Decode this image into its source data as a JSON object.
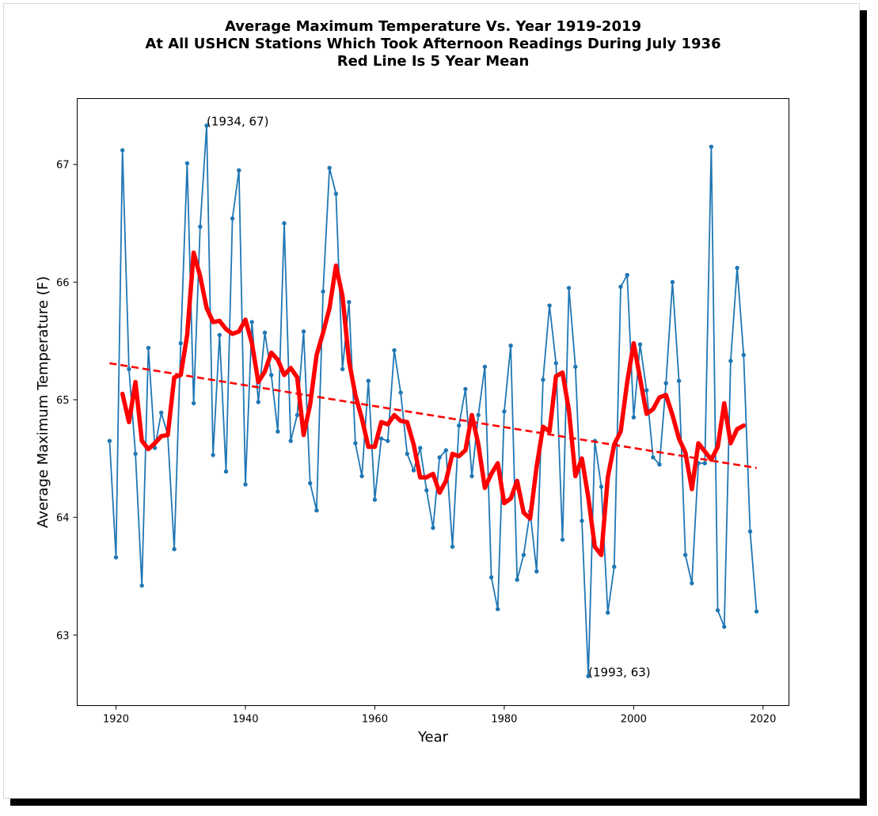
{
  "chart_data": {
    "type": "line",
    "title_lines": [
      "Average Maximum Temperature Vs. Year 1919-2019",
      "At All USHCN Stations Which Took Afternoon Readings During July 1936",
      "Red Line Is 5 Year Mean"
    ],
    "xlabel": "Year",
    "ylabel": "Average Maximum Temperature (F)",
    "xlim": [
      1914,
      2024
    ],
    "ylim": [
      62.4,
      67.56
    ],
    "xticks": [
      1920,
      1940,
      1960,
      1980,
      2000,
      2020
    ],
    "yticks": [
      63,
      64,
      65,
      66,
      67
    ],
    "grid": false,
    "annotations": [
      {
        "text": "(1934, 67)",
        "x": 1934,
        "y": 67.33
      },
      {
        "text": "(1993, 63)",
        "x": 1993,
        "y": 62.65
      }
    ],
    "colors": {
      "annual": "#1f77b4",
      "mean": "#ff0000",
      "trend": "#ff0000"
    },
    "annual_series": {
      "x": [
        1919,
        1920,
        1921,
        1922,
        1923,
        1924,
        1925,
        1926,
        1927,
        1928,
        1929,
        1930,
        1931,
        1932,
        1933,
        1934,
        1935,
        1936,
        1937,
        1938,
        1939,
        1940,
        1941,
        1942,
        1943,
        1944,
        1945,
        1946,
        1947,
        1948,
        1949,
        1950,
        1951,
        1952,
        1953,
        1954,
        1955,
        1956,
        1957,
        1958,
        1959,
        1960,
        1961,
        1962,
        1963,
        1964,
        1965,
        1966,
        1967,
        1968,
        1969,
        1970,
        1971,
        1972,
        1973,
        1974,
        1975,
        1976,
        1977,
        1978,
        1979,
        1980,
        1981,
        1982,
        1983,
        1984,
        1985,
        1986,
        1987,
        1988,
        1989,
        1990,
        1991,
        1992,
        1993,
        1994,
        1995,
        1996,
        1997,
        1998,
        1999,
        2000,
        2001,
        2002,
        2003,
        2004,
        2005,
        2006,
        2007,
        2008,
        2009,
        2010,
        2011,
        2012,
        2013,
        2014,
        2015,
        2016,
        2017,
        2018,
        2019
      ],
      "y": [
        64.65,
        63.66,
        67.12,
        65.26,
        64.54,
        63.42,
        65.44,
        64.59,
        64.89,
        64.7,
        63.73,
        65.48,
        67.01,
        64.97,
        66.47,
        67.33,
        64.53,
        65.55,
        64.39,
        66.54,
        66.95,
        64.28,
        65.66,
        64.98,
        65.57,
        65.21,
        64.73,
        66.5,
        64.65,
        64.87,
        65.58,
        64.29,
        64.06,
        65.92,
        66.97,
        66.75,
        65.26,
        65.83,
        64.63,
        64.35,
        65.16,
        64.15,
        64.67,
        64.65,
        65.42,
        65.06,
        64.54,
        64.4,
        64.59,
        64.23,
        63.91,
        64.51,
        64.57,
        63.75,
        64.78,
        65.09,
        64.35,
        64.87,
        65.28,
        63.49,
        63.22,
        64.9,
        65.46,
        63.47,
        63.68,
        64.05,
        63.54,
        65.17,
        65.8,
        65.31,
        63.81,
        65.95,
        65.28,
        63.97,
        62.65,
        64.65,
        64.26,
        63.19,
        63.58,
        65.96,
        66.06,
        64.85,
        65.47,
        65.08,
        64.51,
        64.45,
        65.14,
        66.0,
        65.16,
        63.68,
        63.44,
        64.46,
        64.46,
        67.15,
        63.21,
        63.07,
        65.33,
        66.12,
        65.38,
        63.88,
        63.2
      ]
    },
    "five_year_mean": {
      "x": [
        1921,
        1922,
        1923,
        1924,
        1925,
        1926,
        1927,
        1928,
        1929,
        1930,
        1931,
        1932,
        1933,
        1934,
        1935,
        1936,
        1937,
        1938,
        1939,
        1940,
        1941,
        1942,
        1943,
        1944,
        1945,
        1946,
        1947,
        1948,
        1949,
        1950,
        1951,
        1952,
        1953,
        1954,
        1955,
        1956,
        1957,
        1958,
        1959,
        1960,
        1961,
        1962,
        1963,
        1964,
        1965,
        1966,
        1967,
        1968,
        1969,
        1970,
        1971,
        1972,
        1973,
        1974,
        1975,
        1976,
        1977,
        1978,
        1979,
        1980,
        1981,
        1982,
        1983,
        1984,
        1985,
        1986,
        1987,
        1988,
        1989,
        1990,
        1991,
        1992,
        1993,
        1994,
        1995,
        1996,
        1997,
        1998,
        1999,
        2000,
        2001,
        2002,
        2003,
        2004,
        2005,
        2006,
        2007,
        2008,
        2009,
        2010,
        2011,
        2012,
        2013,
        2014,
        2015,
        2016,
        2017
      ],
      "y": [
        65.05,
        64.81,
        65.15,
        64.65,
        64.58,
        64.63,
        64.69,
        64.7,
        65.19,
        65.21,
        65.55,
        66.25,
        66.05,
        65.78,
        65.66,
        65.67,
        65.6,
        65.56,
        65.58,
        65.68,
        65.48,
        65.15,
        65.24,
        65.4,
        65.34,
        65.21,
        65.27,
        65.19,
        64.7,
        64.96,
        65.38,
        65.57,
        65.78,
        66.14,
        65.88,
        65.33,
        65.04,
        64.84,
        64.6,
        64.6,
        64.81,
        64.79,
        64.87,
        64.82,
        64.81,
        64.62,
        64.34,
        64.34,
        64.37,
        64.21,
        64.31,
        64.54,
        64.52,
        64.57,
        64.87,
        64.62,
        64.25,
        64.37,
        64.46,
        64.12,
        64.16,
        64.31,
        64.04,
        63.99,
        64.43,
        64.77,
        64.73,
        65.2,
        65.23,
        64.91,
        64.35,
        64.5,
        64.17,
        63.75,
        63.68,
        64.34,
        64.62,
        64.73,
        65.15,
        65.48,
        65.18,
        64.88,
        64.92,
        65.02,
        65.04,
        64.87,
        64.67,
        64.55,
        64.24,
        64.63,
        64.56,
        64.49,
        64.6,
        64.97,
        64.63,
        64.75,
        64.78
      ]
    },
    "trend_line": {
      "x": [
        1919,
        2019
      ],
      "y": [
        65.31,
        64.42
      ]
    }
  }
}
